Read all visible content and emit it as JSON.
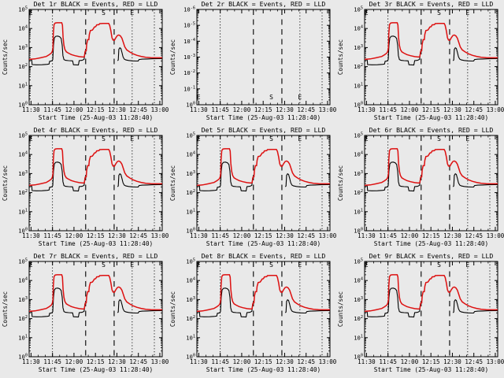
{
  "app": {
    "background_color": "#e9e9e9",
    "foreground_color": "#000000",
    "event_color": "#000000",
    "lld_color": "#dd1111"
  },
  "chart_data": {
    "type": "line",
    "grid": "3x3",
    "legend": {
      "black": "Events",
      "red": "LLD"
    },
    "x_axis": {
      "label": "Start Time (25-Aug-03 11:28:40)",
      "tick_labels": [
        "11:30",
        "11:45",
        "12:00",
        "12:15",
        "12:30",
        "12:45",
        "13:00"
      ],
      "range_minutes": [
        0,
        93
      ],
      "tick_start_minute": 1.33,
      "tick_interval_minutes": 15,
      "minor_tick_interval_minutes": 5
    },
    "y_axis": {
      "label": "Counts/sec",
      "scale": "log"
    },
    "reference_lines": {
      "dotted_minutes": [
        16.3,
        72.0,
        87.5
      ],
      "dashed_minutes": [
        39.5,
        59.4
      ]
    },
    "interval_markers": [
      {
        "text": "E",
        "t": 1.2
      },
      {
        "text": "S",
        "t": 52.0
      },
      {
        "text": "E",
        "t": 72.0
      }
    ],
    "subplots": [
      {
        "title": "Det 1r BLACK = Events, RED = LLD",
        "detector": "1r",
        "has_data": true,
        "y_exponents": [
          0,
          1,
          2,
          3,
          4,
          5
        ]
      },
      {
        "title": "Det 2r BLACK = Events, RED = LLD",
        "detector": "2r",
        "has_data": false,
        "y_exponents": [
          0,
          -1,
          -2,
          -3,
          -4,
          -5,
          -6
        ]
      },
      {
        "title": "Det 3r BLACK = Events, RED = LLD",
        "detector": "3r",
        "has_data": true,
        "y_exponents": [
          0,
          1,
          2,
          3,
          4,
          5
        ]
      },
      {
        "title": "Det 4r BLACK = Events, RED = LLD",
        "detector": "4r",
        "has_data": true,
        "y_exponents": [
          0,
          1,
          2,
          3,
          4,
          5
        ]
      },
      {
        "title": "Det 5r BLACK = Events, RED = LLD",
        "detector": "5r",
        "has_data": true,
        "y_exponents": [
          0,
          1,
          2,
          3,
          4,
          5
        ]
      },
      {
        "title": "Det 6r BLACK = Events, RED = LLD",
        "detector": "6r",
        "has_data": true,
        "y_exponents": [
          0,
          1,
          2,
          3,
          4,
          5
        ]
      },
      {
        "title": "Det 7r BLACK = Events, RED = LLD",
        "detector": "7r",
        "has_data": true,
        "y_exponents": [
          0,
          1,
          2,
          3,
          4,
          5
        ]
      },
      {
        "title": "Det 8r BLACK = Events, RED = LLD",
        "detector": "8r",
        "has_data": true,
        "y_exponents": [
          0,
          1,
          2,
          3,
          4,
          5
        ]
      },
      {
        "title": "Det 9r BLACK = Events, RED = LLD",
        "detector": "9r",
        "has_data": true,
        "y_exponents": [
          0,
          1,
          2,
          3,
          4,
          5
        ]
      }
    ],
    "series": {
      "red_lld": [
        [
          0,
          240
        ],
        [
          4,
          255
        ],
        [
          8,
          290
        ],
        [
          12,
          340
        ],
        [
          14,
          420
        ],
        [
          15.6,
          520
        ],
        [
          16.2,
          640
        ],
        [
          16.6,
          900
        ],
        [
          16.9,
          5000
        ],
        [
          17.4,
          16000
        ],
        [
          18.2,
          19500
        ],
        [
          19.5,
          20000
        ],
        [
          22.8,
          20000
        ],
        [
          23.3,
          15000
        ],
        [
          23.7,
          3500
        ],
        [
          24.3,
          1300
        ],
        [
          25,
          800
        ],
        [
          26,
          600
        ],
        [
          27.5,
          510
        ],
        [
          29.5,
          430
        ],
        [
          32,
          375
        ],
        [
          35,
          335
        ],
        [
          37.5,
          318
        ],
        [
          38.6,
          330
        ],
        [
          39.2,
          650
        ],
        [
          39.9,
          680
        ],
        [
          40.2,
          1500
        ],
        [
          40.9,
          2600
        ],
        [
          41.7,
          2600
        ],
        [
          42.1,
          5000
        ],
        [
          42.8,
          7800
        ],
        [
          44.2,
          8300
        ],
        [
          44.8,
          9500
        ],
        [
          45.6,
          12000
        ],
        [
          46.5,
          12500
        ],
        [
          47.2,
          15500
        ],
        [
          48.8,
          16000
        ],
        [
          49.3,
          18000
        ],
        [
          51.5,
          18500
        ],
        [
          55.6,
          18500
        ],
        [
          56.3,
          14500
        ],
        [
          57.1,
          7500
        ],
        [
          57.9,
          3300
        ],
        [
          58.6,
          2500
        ],
        [
          59.6,
          2400
        ],
        [
          60.6,
          3300
        ],
        [
          61.7,
          4300
        ],
        [
          62.7,
          4600
        ],
        [
          63.8,
          4100
        ],
        [
          64.8,
          3100
        ],
        [
          65.8,
          1850
        ],
        [
          66.8,
          1100
        ],
        [
          68.2,
          760
        ],
        [
          70.2,
          590
        ],
        [
          72.6,
          470
        ],
        [
          75.2,
          395
        ],
        [
          78.2,
          345
        ],
        [
          81.5,
          310
        ],
        [
          85,
          295
        ],
        [
          89,
          290
        ],
        [
          93,
          290
        ]
      ],
      "black_events_segment1": [
        [
          0,
          230
        ],
        [
          1.8,
          222
        ],
        [
          2.1,
          128
        ],
        [
          5,
          124
        ],
        [
          9,
          126
        ],
        [
          12.6,
          132
        ],
        [
          13.9,
          137
        ],
        [
          14.3,
          190
        ],
        [
          15.9,
          200
        ],
        [
          16.5,
          235
        ],
        [
          17,
          1300
        ],
        [
          17.6,
          3200
        ],
        [
          18.6,
          3900
        ],
        [
          20,
          4000
        ],
        [
          21.3,
          3700
        ],
        [
          22.4,
          3000
        ],
        [
          23.1,
          1300
        ],
        [
          23.6,
          380
        ],
        [
          24.3,
          235
        ],
        [
          25.4,
          215
        ],
        [
          27.6,
          207
        ],
        [
          30.4,
          200
        ],
        [
          31,
          126
        ],
        [
          34.4,
          121
        ],
        [
          35,
          207
        ],
        [
          37,
          214
        ],
        [
          38.4,
          240
        ],
        [
          38.9,
          540
        ],
        [
          39.4,
          660
        ]
      ],
      "black_events_segment2": [
        [
          61.8,
          205
        ],
        [
          62.3,
          225
        ],
        [
          62.7,
          800
        ],
        [
          63.4,
          970
        ],
        [
          64.1,
          890
        ],
        [
          64.9,
          550
        ],
        [
          65.6,
          330
        ],
        [
          66.4,
          250
        ],
        [
          67.6,
          224
        ],
        [
          69.6,
          210
        ],
        [
          72.1,
          200
        ],
        [
          74.6,
          196
        ],
        [
          76.2,
          199
        ],
        [
          76.8,
          236
        ],
        [
          79.2,
          246
        ],
        [
          82.5,
          252
        ],
        [
          86.5,
          258
        ],
        [
          90.5,
          262
        ],
        [
          93,
          264
        ]
      ]
    }
  }
}
